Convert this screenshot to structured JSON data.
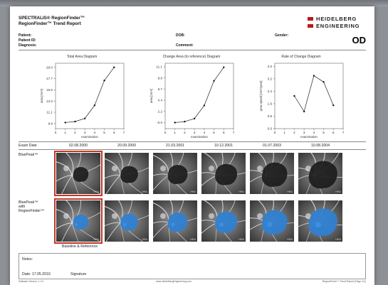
{
  "report": {
    "title_line1": "SPECTRALIS® RegionFinder™",
    "title_line2": "RegionFinder™ Trend Report",
    "eye": "OD",
    "brand_line1": "HEIDELBERG",
    "brand_line2": "ENGINEERING"
  },
  "meta": {
    "patient": "Patient:",
    "patient_id": "Patient ID:",
    "diagnosis": "Diagnosis:",
    "dob": "DOB:",
    "comment": "Comment:",
    "gender": "Gender:"
  },
  "chart_data": [
    {
      "type": "line",
      "title": "Total Area Diagram",
      "xlabel": "examination",
      "ylabel": "area [mm²]",
      "x": [
        1,
        2,
        3,
        4,
        5,
        6
      ],
      "values": [
        9.1,
        9.3,
        9.9,
        12.5,
        17.4,
        20.0
      ],
      "xlim": [
        0,
        7
      ],
      "xticks": [
        "0",
        "1",
        "2",
        "3",
        "4",
        "5",
        "6",
        "7"
      ],
      "ylim": [
        7.9,
        20.8
      ],
      "yticks": [
        "8.9",
        "11.1",
        "13.3",
        "15.5",
        "17.7",
        "20.0"
      ]
    },
    {
      "type": "line",
      "title": "Change Area (to reference) Diagram",
      "xlabel": "examination",
      "ylabel": "area [mm²]",
      "x": [
        1,
        2,
        3,
        4,
        5,
        6
      ],
      "values": [
        0.0,
        0.2,
        0.8,
        3.4,
        8.3,
        11.0
      ],
      "xlim": [
        0,
        7
      ],
      "xticks": [
        "0",
        "1",
        "2",
        "3",
        "4",
        "5",
        "6",
        "7"
      ],
      "ylim": [
        -1.2,
        11.8
      ],
      "yticks": [
        "-0.0",
        "2.2",
        "4.4",
        "6.7",
        "8.9",
        "11.1"
      ]
    },
    {
      "type": "line",
      "title": "Rate of Change Diagram",
      "xlabel": "examination",
      "ylabel": "grow speed [mm²/year]",
      "x": [
        2,
        3,
        4,
        5,
        6
      ],
      "values": [
        2.1,
        1.1,
        3.4,
        3.0,
        1.5
      ],
      "xlim": [
        0,
        7
      ],
      "xticks": [
        "0",
        "1",
        "2",
        "3",
        "4",
        "5",
        "6",
        "7"
      ],
      "ylim": [
        0,
        4.2
      ],
      "yticks": [
        "0.0",
        "0.8",
        "1.6",
        "2.4",
        "3.2",
        "4.0"
      ]
    }
  ],
  "exam": {
    "label": "Exam Date",
    "dates": [
      "02.08.2000",
      "20.09.2000",
      "21.03.2001",
      "10.12.2001",
      "01.07.2003",
      "10.08.2004"
    ]
  },
  "images": {
    "row1_label_1": "BluePeak™",
    "row2_label_1": "BluePeak™",
    "row2_label_2": "with",
    "row2_label_3": "RegionFinder™",
    "baseline_caption": "Baseline & Reference",
    "tag": "HRA"
  },
  "notes": {
    "label": "Notes:",
    "date": "Date: 17.05.2010",
    "signature": "Signature"
  },
  "footer": {
    "left": "Software Version: 1.1.0",
    "center": "www.HeidelbergEngineering.com",
    "right": "RegionFinder™ Trend Report (Page 1/1)"
  }
}
